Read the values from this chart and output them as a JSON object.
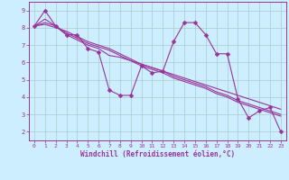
{
  "title": "",
  "xlabel": "Windchill (Refroidissement éolien,°C)",
  "ylabel": "",
  "bg_color": "#cceeff",
  "line_color": "#993399",
  "grid_color": "#aacccc",
  "xlim_left": -0.5,
  "xlim_right": 23.5,
  "ylim": [
    1.5,
    9.5
  ],
  "xticks": [
    0,
    1,
    2,
    3,
    4,
    5,
    6,
    7,
    8,
    9,
    10,
    11,
    12,
    13,
    14,
    15,
    16,
    17,
    18,
    19,
    20,
    21,
    22,
    23
  ],
  "yticks": [
    2,
    3,
    4,
    5,
    6,
    7,
    8,
    9
  ],
  "series_main": [
    8.1,
    9.0,
    8.1,
    7.6,
    7.6,
    6.8,
    6.6,
    4.4,
    4.1,
    4.1,
    5.8,
    5.4,
    5.5,
    7.2,
    8.3,
    8.3,
    7.6,
    6.5,
    6.5,
    3.9,
    2.8,
    3.2,
    3.4,
    2.0
  ],
  "series_trend": [
    [
      8.1,
      8.5,
      8.1,
      7.6,
      7.3,
      7.0,
      6.8,
      6.4,
      6.3,
      6.1,
      5.9,
      5.7,
      5.5,
      5.3,
      5.1,
      4.9,
      4.7,
      4.5,
      4.3,
      4.1,
      3.9,
      3.7,
      3.5,
      3.3
    ],
    [
      8.1,
      8.3,
      8.1,
      7.7,
      7.4,
      7.1,
      6.9,
      6.7,
      6.4,
      6.1,
      5.8,
      5.6,
      5.4,
      5.1,
      4.9,
      4.7,
      4.5,
      4.2,
      4.0,
      3.7,
      3.5,
      3.3,
      3.1,
      2.9
    ],
    [
      8.1,
      8.2,
      8.0,
      7.8,
      7.5,
      7.2,
      7.0,
      6.8,
      6.5,
      6.2,
      5.9,
      5.7,
      5.5,
      5.2,
      5.0,
      4.8,
      4.6,
      4.3,
      4.1,
      3.8,
      3.6,
      3.4,
      3.2,
      3.0
    ]
  ],
  "marker": "D",
  "markersize": 2.5,
  "linewidth": 0.8,
  "tick_fontsize": 4.5,
  "xlabel_fontsize": 5.5
}
